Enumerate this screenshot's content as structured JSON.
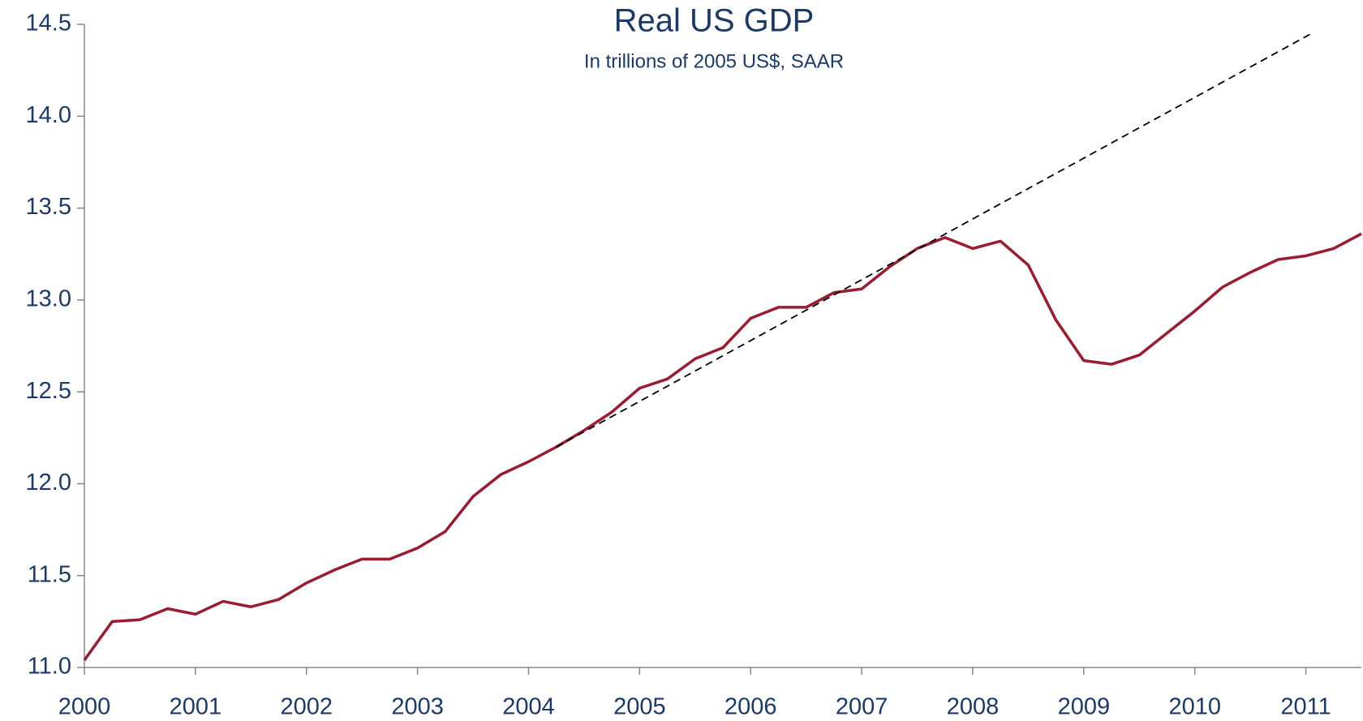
{
  "chart_data": {
    "type": "line",
    "title": "Real US GDP",
    "subtitle": "In trillions of 2005 US$, SAAR",
    "series": [
      {
        "color": "#9b1b30",
        "dash": false,
        "x": [
          2000,
          2000.25,
          2000.5,
          2000.75,
          2001,
          2001.25,
          2001.5,
          2001.75,
          2002,
          2002.25,
          2002.5,
          2002.75,
          2003,
          2003.25,
          2003.5,
          2003.75,
          2004,
          2004.25,
          2004.5,
          2004.75,
          2005,
          2005.25,
          2005.5,
          2005.75,
          2006,
          2006.25,
          2006.5,
          2006.75,
          2007,
          2007.25,
          2007.5,
          2007.75,
          2008,
          2008.25,
          2008.5,
          2008.75,
          2009,
          2009.25,
          2009.5,
          2009.75,
          2010,
          2010.25,
          2010.5,
          2010.75,
          2011,
          2011.25,
          2011.5
        ],
        "values": [
          11.04,
          11.25,
          11.26,
          11.32,
          11.29,
          11.36,
          11.33,
          11.37,
          11.46,
          11.53,
          11.59,
          11.59,
          11.65,
          11.74,
          11.93,
          12.05,
          12.12,
          12.2,
          12.29,
          12.39,
          12.52,
          12.57,
          12.68,
          12.74,
          12.9,
          12.96,
          12.96,
          13.04,
          13.06,
          13.18,
          13.28,
          13.34,
          13.28,
          13.32,
          13.19,
          12.89,
          12.67,
          12.65,
          12.7,
          12.82,
          12.94,
          13.07,
          13.15,
          13.22,
          13.24,
          13.28,
          13.36
        ]
      },
      {
        "color": "#000000",
        "dash": true,
        "x": [
          2004.25,
          2011.05
        ],
        "values": [
          12.2,
          14.45
        ]
      }
    ],
    "xlim": [
      2000,
      2011.5
    ],
    "xticks": [
      2000,
      2001,
      2002,
      2003,
      2004,
      2005,
      2006,
      2007,
      2008,
      2009,
      2010,
      2011
    ],
    "ylim": [
      11.0,
      14.5
    ],
    "yticks": [
      {
        "value": 11.0,
        "label": "11.0"
      },
      {
        "value": 11.5,
        "label": "11.5"
      },
      {
        "value": 12.0,
        "label": "12.0"
      },
      {
        "value": 12.5,
        "label": "12.5"
      },
      {
        "value": 13.0,
        "label": "13.0"
      },
      {
        "value": 13.5,
        "label": "13.5"
      },
      {
        "value": 14.0,
        "label": "14.0"
      },
      {
        "value": 14.5,
        "label": "14.5"
      }
    ],
    "grid": false
  }
}
